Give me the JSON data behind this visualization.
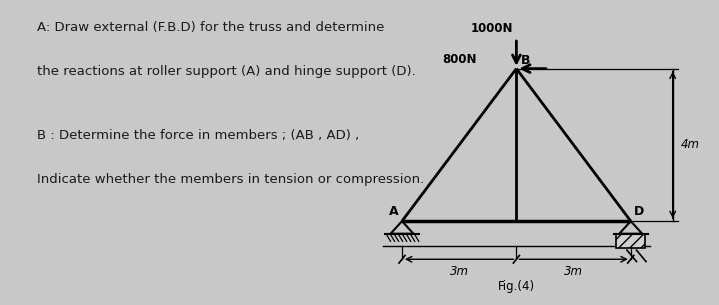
{
  "bg_color": "#c8c8c8",
  "text_panel_color": "#ffffff",
  "diagram_bg": "#e8e8e8",
  "text_color": "#1a1a1a",
  "title_lines": [
    "A: Draw external (F.B.D) for the truss and determine",
    "the reactions at roller support (A) and hinge support (D)."
  ],
  "subtitle_lines": [
    "B : Determine the force in members ; (AB , AD) ,",
    "Indicate whether the members in tension or compression."
  ],
  "fig_label": "Fig.(4)",
  "A": [
    0.0,
    0.0
  ],
  "B": [
    3.0,
    4.0
  ],
  "D": [
    6.0,
    0.0
  ],
  "line_color": "#000000",
  "lw_member": 2.0,
  "lw_base": 2.5,
  "arrow_lw": 2.0,
  "dim_lw": 1.2,
  "support_lw": 1.5,
  "fontsize_text": 9.5,
  "fontsize_label": 9,
  "fontsize_force": 8.5,
  "fontsize_dim": 8.5,
  "fontsize_fig": 8.5
}
